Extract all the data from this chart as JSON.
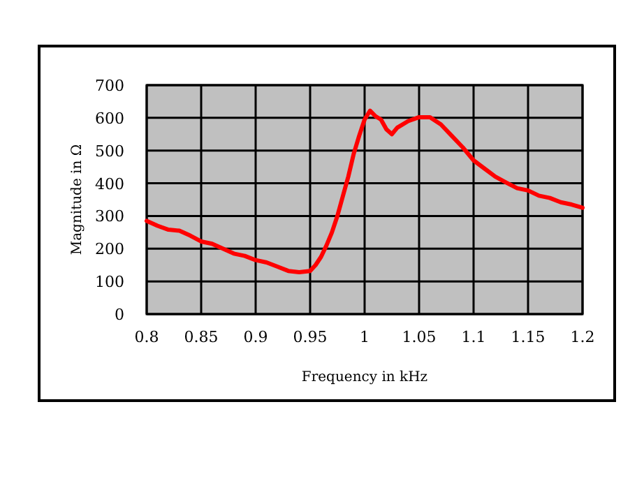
{
  "chart_data": {
    "type": "line",
    "xlabel": "Frequency in kHz",
    "ylabel": "Magnitude in Ω",
    "x": [
      0.8,
      0.81,
      0.82,
      0.83,
      0.84,
      0.85,
      0.86,
      0.87,
      0.88,
      0.89,
      0.9,
      0.91,
      0.92,
      0.93,
      0.94,
      0.95,
      0.955,
      0.96,
      0.965,
      0.97,
      0.975,
      0.98,
      0.985,
      0.99,
      0.995,
      1.0,
      1.005,
      1.01,
      1.015,
      1.02,
      1.025,
      1.03,
      1.04,
      1.05,
      1.06,
      1.07,
      1.08,
      1.09,
      1.1,
      1.11,
      1.12,
      1.13,
      1.14,
      1.15,
      1.16,
      1.17,
      1.18,
      1.19,
      1.2
    ],
    "series": [
      {
        "color": "#ff0000",
        "values": [
          285,
          270,
          258,
          255,
          240,
          222,
          215,
          200,
          185,
          178,
          165,
          158,
          145,
          132,
          128,
          132,
          150,
          175,
          210,
          250,
          300,
          360,
          420,
          490,
          545,
          595,
          622,
          605,
          595,
          565,
          550,
          570,
          590,
          602,
          602,
          580,
          545,
          510,
          470,
          445,
          420,
          402,
          385,
          378,
          362,
          355,
          342,
          335,
          325
        ]
      }
    ],
    "xlim": [
      0.8,
      1.2
    ],
    "xticks": [
      0.8,
      0.85,
      0.9,
      0.95,
      1,
      1.05,
      1.1,
      1.15,
      1.2
    ],
    "ylim": [
      0,
      700
    ],
    "yticks": [
      0,
      100,
      200,
      300,
      400,
      500,
      600,
      700
    ],
    "grid": true,
    "marker": "none",
    "line_style": "solid"
  }
}
